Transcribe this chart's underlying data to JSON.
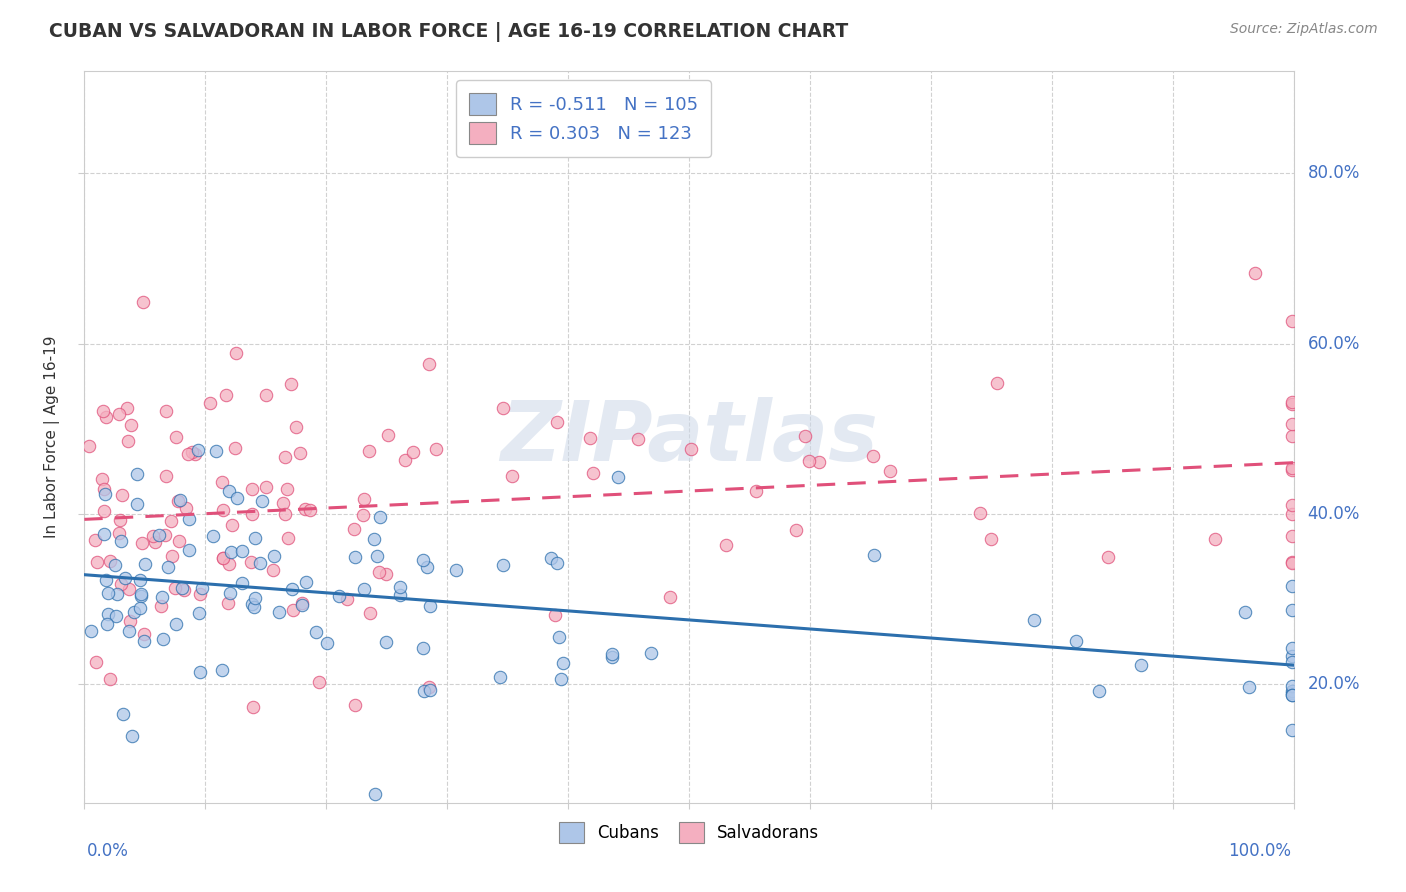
{
  "title": "CUBAN VS SALVADORAN IN LABOR FORCE | AGE 16-19 CORRELATION CHART",
  "source_text": "Source: ZipAtlas.com",
  "ylabel": "In Labor Force | Age 16-19",
  "yaxis_labels": [
    "20.0%",
    "40.0%",
    "60.0%",
    "80.0%"
  ],
  "yaxis_values": [
    0.2,
    0.4,
    0.6,
    0.8
  ],
  "cubans_color": "#aec6e8",
  "salvadorans_color": "#f4afc0",
  "cubans_line_color": "#2c6fad",
  "salvadorans_line_color": "#e0507a",
  "cubans_R": -0.511,
  "cubans_N": 105,
  "salvadorans_R": 0.303,
  "salvadorans_N": 123,
  "xlim": [
    0.0,
    1.0
  ],
  "ylim": [
    0.06,
    0.92
  ],
  "background_color": "#ffffff",
  "grid_color": "#cccccc",
  "title_color": "#333333",
  "axis_label_color": "#4472c4",
  "text_color_dark": "#333333"
}
